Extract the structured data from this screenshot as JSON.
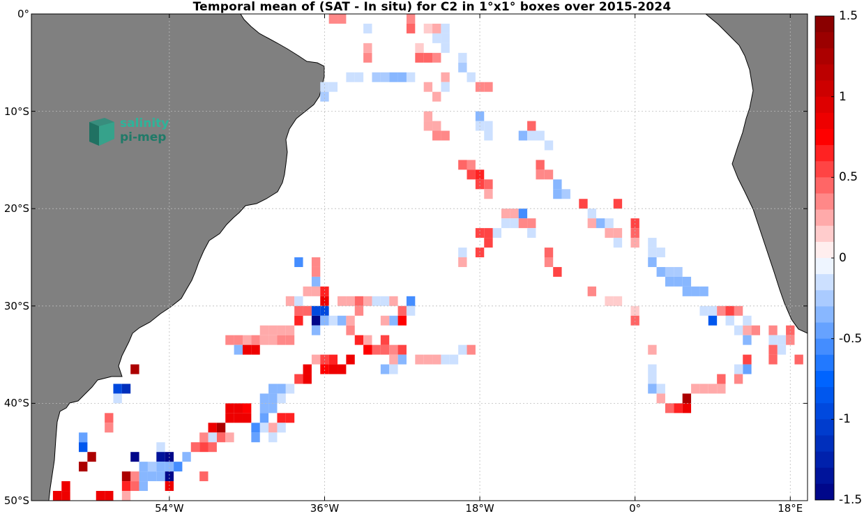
{
  "chart_data": {
    "type": "heatmap",
    "title": "Temporal mean of (SAT - In situ) for C2 in 1°x1° boxes over 2015-2024",
    "lon_range": [
      -70,
      20
    ],
    "lat_range": [
      -50,
      0
    ],
    "x_ticks": [
      "54°W",
      "36°W",
      "18°W",
      "0°",
      "18°E"
    ],
    "x_tick_values": [
      -54,
      -36,
      -18,
      0,
      18
    ],
    "y_ticks": [
      "0°",
      "10°S",
      "20°S",
      "30°S",
      "40°S",
      "50°S"
    ],
    "y_tick_values": [
      0,
      -10,
      -20,
      -30,
      -40,
      -50
    ],
    "grid": true,
    "colorbar": {
      "range": [
        -1.5,
        1.5
      ],
      "ticks": [
        "1.5",
        "1",
        "0.5",
        "0",
        "-0.5",
        "-1",
        "-1.5"
      ],
      "tick_values": [
        1.5,
        1,
        0.5,
        0,
        -0.5,
        -1,
        -1.5
      ],
      "levels": 30
    },
    "cells": [
      [
        -35,
        -0.5,
        0.3
      ],
      [
        -34,
        -0.5,
        0.3
      ],
      [
        -31,
        -1.5,
        -0.15
      ],
      [
        -26,
        -0.5,
        0.35
      ],
      [
        -26,
        -1.5,
        0.45
      ],
      [
        -24,
        -1.5,
        0.15
      ],
      [
        -23,
        -1.5,
        0.25
      ],
      [
        -22,
        -1.5,
        -0.15
      ],
      [
        -23,
        -2.5,
        -0.2
      ],
      [
        -22,
        -2.5,
        -0.2
      ],
      [
        -31,
        -3.5,
        0.2
      ],
      [
        -31,
        -4.5,
        0.3
      ],
      [
        -25,
        -3.5,
        0.15
      ],
      [
        -25,
        -4.5,
        0.4
      ],
      [
        -24,
        -4.5,
        0.4
      ],
      [
        -23,
        -4.5,
        0.3
      ],
      [
        -22,
        -3.5,
        -0.1
      ],
      [
        -20,
        -4.5,
        -0.2
      ],
      [
        -20,
        -5.5,
        -0.25
      ],
      [
        -33,
        -6.5,
        -0.2
      ],
      [
        -32,
        -6.5,
        -0.2
      ],
      [
        -30,
        -6.5,
        -0.25
      ],
      [
        -29,
        -6.5,
        -0.25
      ],
      [
        -28,
        -6.5,
        -0.3
      ],
      [
        -27,
        -6.5,
        -0.3
      ],
      [
        -26,
        -6.5,
        -0.2
      ],
      [
        -22,
        -6.5,
        0.2
      ],
      [
        -19,
        -6.5,
        -0.2
      ],
      [
        -36,
        -7.5,
        -0.2
      ],
      [
        -35,
        -7.5,
        -0.2
      ],
      [
        -36,
        -8.5,
        -0.25
      ],
      [
        -24,
        -7.5,
        0.2
      ],
      [
        -23,
        -8.5,
        0.25
      ],
      [
        -22,
        -7.5,
        -0.15
      ],
      [
        -18,
        -7.5,
        0.3
      ],
      [
        -17,
        -7.5,
        0.3
      ],
      [
        -24,
        -10.5,
        0.25
      ],
      [
        -24,
        -11.5,
        0.2
      ],
      [
        -23,
        -11.5,
        0.2
      ],
      [
        -23,
        -12.5,
        0.3
      ],
      [
        -22,
        -12.5,
        0.3
      ],
      [
        -18,
        -10.5,
        -0.3
      ],
      [
        -18,
        -11.5,
        -0.2
      ],
      [
        -17,
        -11.5,
        -0.2
      ],
      [
        -17,
        -12.5,
        -0.2
      ],
      [
        -12,
        -11.5,
        0.4
      ],
      [
        -13,
        -12.5,
        -0.3
      ],
      [
        -12,
        -12.5,
        -0.15
      ],
      [
        -11,
        -12.5,
        -0.2
      ],
      [
        -10,
        -13.5,
        -0.2
      ],
      [
        -20,
        -15.5,
        0.45
      ],
      [
        -19,
        -15.5,
        0.3
      ],
      [
        -19,
        -16.5,
        0.55
      ],
      [
        -18,
        -16.5,
        0.6
      ],
      [
        -18,
        -17.5,
        0.5
      ],
      [
        -17,
        -17.5,
        0.45
      ],
      [
        -17,
        -18.5,
        0.2
      ],
      [
        -11,
        -15.5,
        0.45
      ],
      [
        -11,
        -16.5,
        0.3
      ],
      [
        -10,
        -16.5,
        0.3
      ],
      [
        -9,
        -17.5,
        -0.3
      ],
      [
        -9,
        -18.5,
        -0.3
      ],
      [
        -8,
        -18.5,
        -0.25
      ],
      [
        -15,
        -20.5,
        0.2
      ],
      [
        -14,
        -20.5,
        0.2
      ],
      [
        -13,
        -20.5,
        -0.55
      ],
      [
        -14,
        -21.5,
        -0.1
      ],
      [
        -13,
        -21.5,
        0.35
      ],
      [
        -12,
        -21.5,
        0.35
      ],
      [
        -15,
        -21.5,
        -0.1
      ],
      [
        -16,
        -22.5,
        -0.1
      ],
      [
        -12,
        -22.5,
        -0.1
      ],
      [
        -17,
        -22.5,
        0.5
      ],
      [
        -17,
        -23.5,
        0.5
      ],
      [
        -18,
        -22.5,
        0.5
      ],
      [
        -6,
        -19.5,
        0.5
      ],
      [
        -5,
        -20.5,
        -0.1
      ],
      [
        -5,
        -21.5,
        0.2
      ],
      [
        -4,
        -21.5,
        -0.3
      ],
      [
        -3,
        -21.5,
        -0.15
      ],
      [
        -3,
        -22.5,
        0.25
      ],
      [
        -2,
        -22.5,
        0.25
      ],
      [
        -2,
        -23.5,
        -0.2
      ],
      [
        -2,
        -19.5,
        0.5
      ],
      [
        0,
        -21.5,
        0.5
      ],
      [
        0,
        -22.5,
        0.4
      ],
      [
        0,
        -23.5,
        0.2
      ],
      [
        -10,
        -24.5,
        0.45
      ],
      [
        -10,
        -25.5,
        0.3
      ],
      [
        -9,
        -26.5,
        0.5
      ],
      [
        -20,
        -24.5,
        -0.15
      ],
      [
        -20,
        -25.5,
        0.2
      ],
      [
        -18,
        -24.5,
        0.5
      ],
      [
        2,
        -23.5,
        -0.15
      ],
      [
        2,
        -24.5,
        -0.15
      ],
      [
        2,
        -25.5,
        -0.4
      ],
      [
        3,
        -24.5,
        -0.2
      ],
      [
        3,
        -26.5,
        -0.4
      ],
      [
        4,
        -26.5,
        -0.25
      ],
      [
        5,
        -26.5,
        -0.25
      ],
      [
        4,
        -27.5,
        -0.3
      ],
      [
        5,
        -27.5,
        -0.3
      ],
      [
        6,
        -27.5,
        -0.3
      ],
      [
        6,
        -28.5,
        -0.3
      ],
      [
        7,
        -28.5,
        -0.3
      ],
      [
        8,
        -28.5,
        -0.3
      ],
      [
        -5,
        -28.5,
        0.3
      ],
      [
        -3,
        -29.5,
        0.15
      ],
      [
        -2,
        -29.5,
        0.15
      ],
      [
        0,
        -30.5,
        0.15
      ],
      [
        0,
        -31.5,
        0.4
      ],
      [
        8,
        -30.5,
        -0.1
      ],
      [
        9,
        -30.5,
        -0.1
      ],
      [
        9,
        -31.5,
        -0.8
      ],
      [
        10,
        -30.5,
        0.3
      ],
      [
        11,
        -30.5,
        0.5
      ],
      [
        12,
        -30.5,
        0.3
      ],
      [
        11,
        -31.5,
        -0.1
      ],
      [
        12,
        -32.5,
        -0.2
      ],
      [
        13,
        -32.5,
        0.2
      ],
      [
        14,
        -32.5,
        0.3
      ],
      [
        13,
        -33.5,
        -0.3
      ],
      [
        13,
        -31.5,
        -0.2
      ],
      [
        16,
        -32.5,
        0.3
      ],
      [
        16,
        -33.5,
        -0.2
      ],
      [
        17,
        -33.5,
        -0.2
      ],
      [
        17,
        -34.5,
        -0.1
      ],
      [
        16,
        -34.5,
        0.4
      ],
      [
        16,
        -35.5,
        0.4
      ],
      [
        18,
        -32.5,
        0.4
      ],
      [
        18,
        -33.5,
        0.3
      ],
      [
        19,
        -35.5,
        0.45
      ],
      [
        13,
        -35.5,
        0.5
      ],
      [
        13,
        -36.5,
        -0.5
      ],
      [
        12,
        -36.5,
        -0.15
      ],
      [
        10,
        -37.5,
        0.45
      ],
      [
        9,
        -38.5,
        0.2
      ],
      [
        8,
        -38.5,
        0.2
      ],
      [
        7,
        -38.5,
        0.2
      ],
      [
        10,
        -38.5,
        0.2
      ],
      [
        12,
        -37.5,
        0.35
      ],
      [
        2,
        -34.5,
        0.2
      ],
      [
        2,
        -36.5,
        -0.2
      ],
      [
        2,
        -37.5,
        -0.2
      ],
      [
        2,
        -38.5,
        -0.3
      ],
      [
        3,
        -38.5,
        -0.2
      ],
      [
        3,
        -39.5,
        0.2
      ],
      [
        4,
        -40.5,
        0.45
      ],
      [
        5,
        -40.5,
        0.6
      ],
      [
        6,
        -40.5,
        0.85
      ],
      [
        6,
        -39.5,
        1.3
      ],
      [
        -39,
        -25.5,
        -0.55
      ],
      [
        -37,
        -25.5,
        0.3
      ],
      [
        -37,
        -26.5,
        0.3
      ],
      [
        -37,
        -27.5,
        -0.3
      ],
      [
        -37,
        -28.5,
        0.2
      ],
      [
        -36,
        -28.5,
        0.6
      ],
      [
        -36,
        -29.5,
        0.8
      ],
      [
        -38,
        -28.5,
        0.2
      ],
      [
        -40,
        -29.5,
        0.2
      ],
      [
        -39,
        -29.5,
        -0.2
      ],
      [
        -39,
        -30.5,
        0.45
      ],
      [
        -39,
        -31.5,
        0.6
      ],
      [
        -38,
        -30.5,
        0.4
      ],
      [
        -37,
        -30.5,
        -0.9
      ],
      [
        -36,
        -30.5,
        -1.0
      ],
      [
        -37,
        -31.5,
        -1.5
      ],
      [
        -36,
        -31.5,
        -0.3
      ],
      [
        -35,
        -31.5,
        -0.2
      ],
      [
        -37,
        -32.5,
        -0.3
      ],
      [
        -34,
        -31.5,
        -0.3
      ],
      [
        -33,
        -31.5,
        0.2
      ],
      [
        -33,
        -32.5,
        0.3
      ],
      [
        -34,
        -29.5,
        0.2
      ],
      [
        -33,
        -29.5,
        0.2
      ],
      [
        -32,
        -29.5,
        0.4
      ],
      [
        -32,
        -30.5,
        0.3
      ],
      [
        -31,
        -29.5,
        0.2
      ],
      [
        -30,
        -29.5,
        -0.2
      ],
      [
        -29,
        -29.5,
        -0.15
      ],
      [
        -28,
        -29.5,
        0.2
      ],
      [
        -27,
        -30.5,
        0.4
      ],
      [
        -26,
        -30.5,
        -0.2
      ],
      [
        -26,
        -29.5,
        -0.6
      ],
      [
        -28,
        -31.5,
        -0.4
      ],
      [
        -29,
        -31.5,
        0.2
      ],
      [
        -27,
        -31.5,
        0.7
      ],
      [
        -32,
        -33.5,
        0.6
      ],
      [
        -31,
        -33.5,
        0.2
      ],
      [
        -31,
        -34.5,
        0.7
      ],
      [
        -30,
        -34.5,
        0.4
      ],
      [
        -29,
        -34.5,
        0.4
      ],
      [
        -29,
        -33.5,
        0.5
      ],
      [
        -28,
        -34.5,
        0.3
      ],
      [
        -27,
        -34.5,
        0.5
      ],
      [
        -27,
        -35.5,
        -0.4
      ],
      [
        -28,
        -35.5,
        0.2
      ],
      [
        -29,
        -36.5,
        -0.3
      ],
      [
        -28,
        -36.5,
        -0.2
      ],
      [
        -25,
        -35.5,
        0.2
      ],
      [
        -24,
        -35.5,
        0.2
      ],
      [
        -23,
        -35.5,
        0.2
      ],
      [
        -22,
        -35.5,
        -0.2
      ],
      [
        -21,
        -35.5,
        -0.15
      ],
      [
        -20,
        -34.5,
        -0.1
      ],
      [
        -19,
        -34.5,
        0.3
      ],
      [
        -37,
        -35.5,
        0.2
      ],
      [
        -36,
        -35.5,
        0.5
      ],
      [
        -36,
        -36.5,
        0.7
      ],
      [
        -35,
        -36.5,
        0.8
      ],
      [
        -34,
        -36.5,
        0.8
      ],
      [
        -35,
        -35.5,
        0.6
      ],
      [
        -33,
        -35.5,
        0.9
      ],
      [
        -38,
        -36.5,
        0.8
      ],
      [
        -38,
        -37.5,
        0.9
      ],
      [
        -39,
        -37.5,
        0.5
      ],
      [
        -47,
        -33.5,
        0.35
      ],
      [
        -46,
        -33.5,
        0.3
      ],
      [
        -46,
        -34.5,
        -0.4
      ],
      [
        -45,
        -33.5,
        0.2
      ],
      [
        -45,
        -34.5,
        0.9
      ],
      [
        -44,
        -34.5,
        0.9
      ],
      [
        -43,
        -33.5,
        0.2
      ],
      [
        -42,
        -33.5,
        0.2
      ],
      [
        -41,
        -33.5,
        0.3
      ],
      [
        -41,
        -32.5,
        0.2
      ],
      [
        -42,
        -32.5,
        0.2
      ],
      [
        -40,
        -32.5,
        0.2
      ],
      [
        -40,
        -33.5,
        0.3
      ],
      [
        -43,
        -32.5,
        0.2
      ],
      [
        -44,
        -33.5,
        0.3
      ],
      [
        -42,
        -39.5,
        -0.4
      ],
      [
        -43,
        -39.5,
        -0.4
      ],
      [
        -43,
        -40.5,
        -0.3
      ],
      [
        -42,
        -40.5,
        -0.4
      ],
      [
        -41,
        -38.5,
        -0.4
      ],
      [
        -41,
        -39.5,
        -0.15
      ],
      [
        -40,
        -38.5,
        -0.15
      ],
      [
        -42,
        -38.5,
        -0.35
      ],
      [
        -41,
        -41.5,
        0.6
      ],
      [
        -40,
        -41.5,
        0.6
      ],
      [
        -41,
        -42.5,
        -0.2
      ],
      [
        -43,
        -41.5,
        -0.5
      ],
      [
        -43,
        -42.5,
        -0.2
      ],
      [
        -42,
        -42.5,
        0.2
      ],
      [
        -42,
        -43.5,
        -0.2
      ],
      [
        -44,
        -43.5,
        -0.5
      ],
      [
        -44,
        -42.5,
        -0.6
      ],
      [
        -45,
        -41.5,
        0.8
      ],
      [
        -46,
        -41.5,
        0.9
      ],
      [
        -47,
        -41.5,
        0.9
      ],
      [
        -47,
        -40.5,
        0.9
      ],
      [
        -46,
        -40.5,
        0.8
      ],
      [
        -45,
        -40.5,
        0.7
      ],
      [
        -48,
        -42.5,
        1.2
      ],
      [
        -49,
        -42.5,
        0.9
      ],
      [
        -48,
        -43.5,
        0.4
      ],
      [
        -47,
        -43.5,
        0.2
      ],
      [
        -49,
        -43.5,
        -0.2
      ],
      [
        -50,
        -43.5,
        0.3
      ],
      [
        -49,
        -44.5,
        0.4
      ],
      [
        -50,
        -44.5,
        0.5
      ],
      [
        -51,
        -44.5,
        0.4
      ],
      [
        -52,
        -45.5,
        -0.4
      ],
      [
        -53,
        -46.5,
        -0.6
      ],
      [
        -50,
        -47.5,
        0.4
      ],
      [
        -60,
        -38.5,
        -1.0
      ],
      [
        -59,
        -38.5,
        -1.2
      ],
      [
        -60,
        -39.5,
        -0.15
      ],
      [
        -58,
        -36.5,
        1.2
      ],
      [
        -61,
        -41.5,
        0.4
      ],
      [
        -61,
        -42.5,
        0.3
      ],
      [
        -64,
        -43.5,
        -0.5
      ],
      [
        -64,
        -44.5,
        -0.8
      ],
      [
        -63,
        -45.5,
        1.3
      ],
      [
        -64,
        -46.5,
        1.3
      ],
      [
        -55,
        -44.5,
        -0.2
      ],
      [
        -55,
        -45.5,
        -1.3
      ],
      [
        -57,
        -46.5,
        -0.3
      ],
      [
        -56,
        -46.5,
        -0.25
      ],
      [
        -55,
        -46.5,
        -0.3
      ],
      [
        -54,
        -46.5,
        -0.3
      ],
      [
        -58,
        -45.5,
        -1.5
      ],
      [
        -54,
        -45.5,
        -1.5
      ],
      [
        -57,
        -47.5,
        -0.3
      ],
      [
        -56,
        -47.5,
        -0.3
      ],
      [
        -55,
        -47.5,
        -0.3
      ],
      [
        -54,
        -47.5,
        -1.5
      ],
      [
        -58,
        -47.5,
        0.3
      ],
      [
        -59,
        -47.5,
        1.2
      ],
      [
        -59,
        -48.5,
        0.6
      ],
      [
        -58,
        -48.5,
        0.4
      ],
      [
        -57,
        -48.5,
        -0.3
      ],
      [
        -54,
        -48.5,
        0.8
      ],
      [
        -59,
        -49.5,
        0.2
      ],
      [
        -61,
        -49.5,
        0.85
      ],
      [
        -62,
        -49.5,
        0.85
      ],
      [
        -66,
        -48.5,
        0.8
      ],
      [
        -66,
        -49.5,
        0.9
      ],
      [
        -67,
        -49.5,
        0.8
      ]
    ]
  },
  "logo": {
    "line1": "salinity",
    "line2": "pi-mep"
  }
}
